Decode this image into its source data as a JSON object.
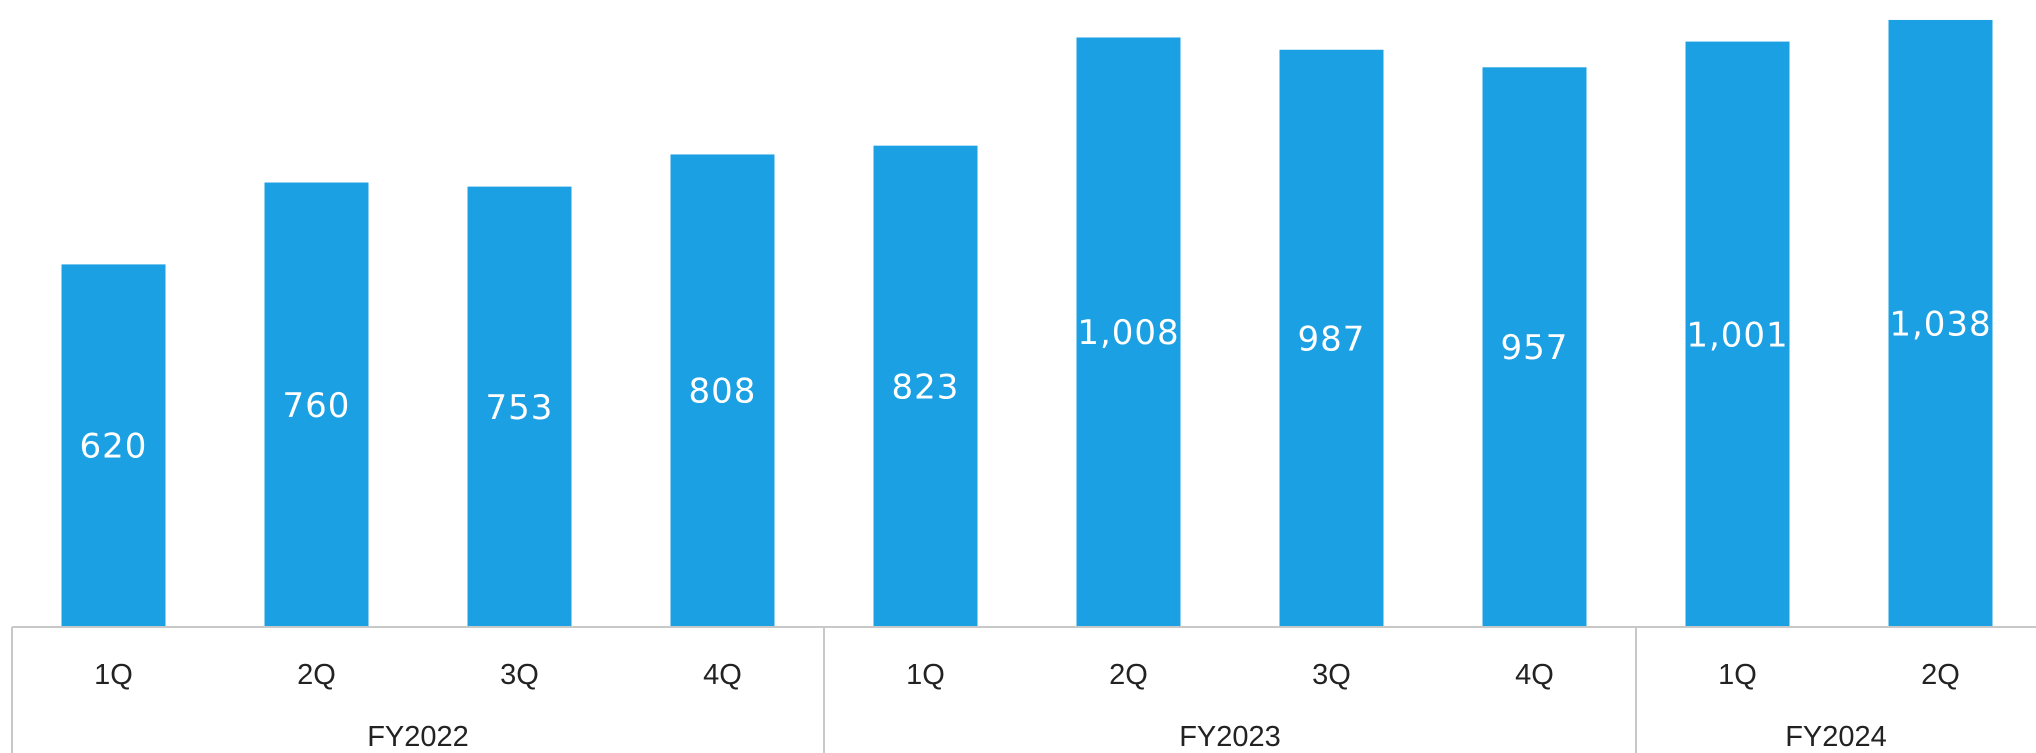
{
  "chart_data": {
    "type": "bar",
    "categories": [
      "1Q",
      "2Q",
      "3Q",
      "4Q",
      "1Q",
      "2Q",
      "3Q",
      "4Q",
      "1Q",
      "2Q"
    ],
    "groups": [
      {
        "label": "FY2022",
        "count": 4
      },
      {
        "label": "FY2023",
        "count": 4
      },
      {
        "label": "FY2024",
        "count": 2
      }
    ],
    "values": [
      620,
      760,
      753,
      808,
      823,
      1008,
      987,
      957,
      1001,
      1038
    ],
    "value_labels": [
      "620",
      "760",
      "753",
      "808",
      "823",
      "1,008",
      "987",
      "957",
      "1,001",
      "1,038"
    ],
    "ylim": [
      0,
      1055
    ],
    "grid": false,
    "bar_color": "#1ca0e4",
    "axis_color": "#c8c8c8",
    "title": "",
    "xlabel": "",
    "ylabel": ""
  }
}
